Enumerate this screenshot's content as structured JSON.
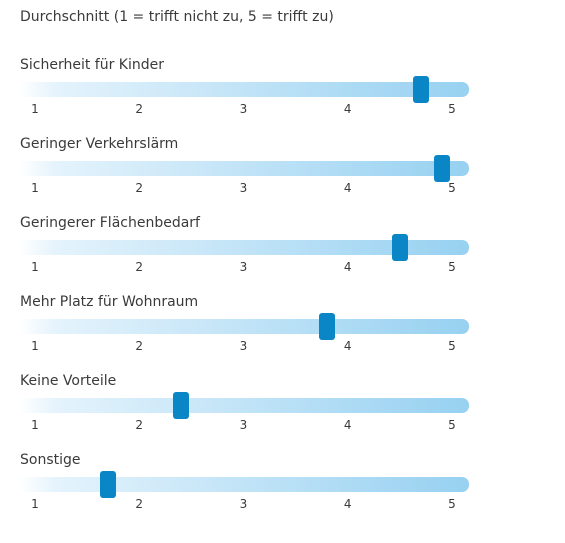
{
  "title": "Durchschnitt (1 = trifft nicht zu, 5 = trifft zu)",
  "chart_data": {
    "type": "slider",
    "scale": [
      1,
      2,
      3,
      4,
      5
    ],
    "xlim": [
      1,
      5
    ],
    "items": [
      {
        "label": "Sicherheit für Kinder",
        "value": 4.7
      },
      {
        "label": "Geringer Verkehrslärm",
        "value": 4.9
      },
      {
        "label": "Geringerer Flächenbedarf",
        "value": 4.5
      },
      {
        "label": "Mehr Platz für Wohnraum",
        "value": 3.8
      },
      {
        "label": "Keine Vorteile",
        "value": 2.4
      },
      {
        "label": "Sonstige",
        "value": 1.7
      }
    ]
  },
  "colors": {
    "handle": "#0a86c6",
    "track_end": "#97d1f1",
    "text": "#3a3a3a"
  }
}
